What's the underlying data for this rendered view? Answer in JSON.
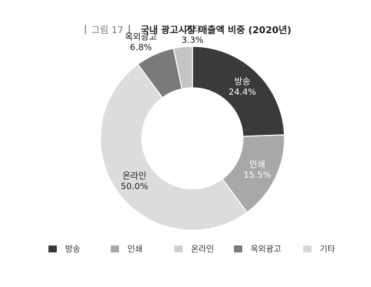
{
  "figure": {
    "label": "그림 17",
    "title": "국내 광고시장 매출액 비중 (2020년)"
  },
  "chart_data": {
    "type": "pie",
    "donut": true,
    "categories": [
      "방송",
      "인쇄",
      "온라인",
      "옥외광고",
      "기타"
    ],
    "values": [
      24.4,
      15.5,
      50.0,
      6.8,
      3.3
    ],
    "value_labels": [
      "24.4%",
      "15.5%",
      "50.0%",
      "6.8%",
      "3.3%"
    ],
    "colors": [
      "#3a3a3a",
      "#a8a8a8",
      "#dcdcdc",
      "#7a7a7a",
      "#c4c4c4"
    ],
    "legend_colors": [
      "#3a3a3a",
      "#a8a8a8",
      "#d0d0d0",
      "#7a7a7a",
      "#d8d8d8"
    ],
    "start_angle": "12 o'clock",
    "direction": "clockwise",
    "legend_position": "bottom"
  }
}
